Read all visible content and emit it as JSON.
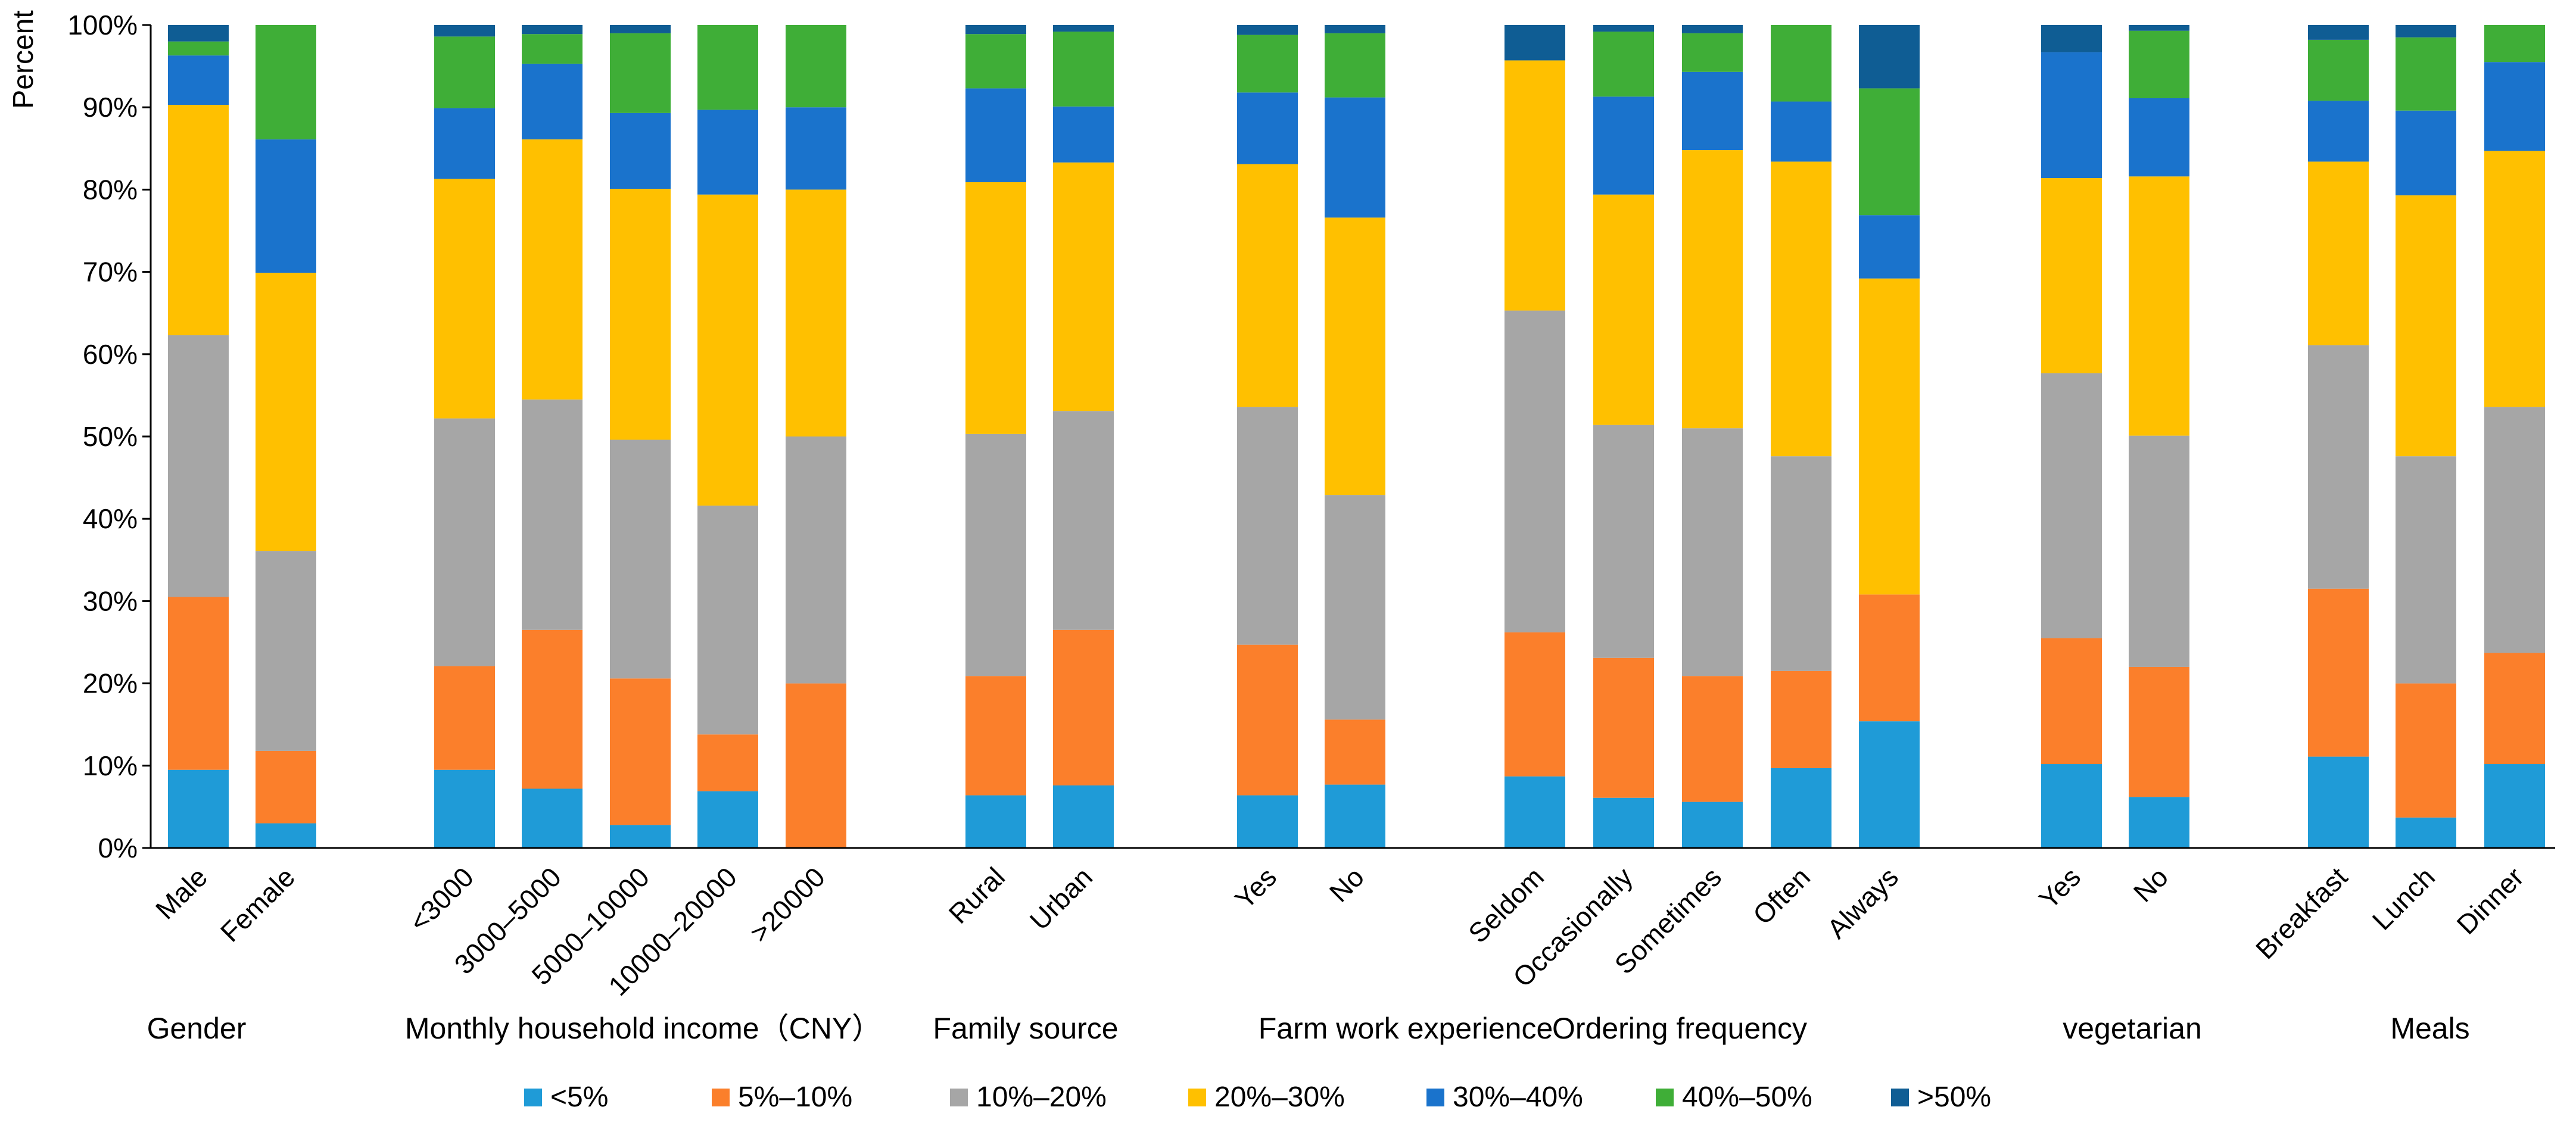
{
  "chart_data": {
    "type": "bar",
    "stacked": true,
    "ylabel": "Percent",
    "ylim": [
      0,
      100
    ],
    "yticks": [
      "0%",
      "10%",
      "20%",
      "30%",
      "40%",
      "50%",
      "60%",
      "70%",
      "80%",
      "90%",
      "100%"
    ],
    "legend_position": "bottom",
    "series": [
      {
        "name": "<5%",
        "color": "#1f9bd7"
      },
      {
        "name": "5%–10%",
        "color": "#fb7f2b"
      },
      {
        "name": "10%–20%",
        "color": "#a6a6a6"
      },
      {
        "name": "20%–30%",
        "color": "#ffc000"
      },
      {
        "name": "30%–40%",
        "color": "#1a73cc"
      },
      {
        "name": "40%–50%",
        "color": "#3fae37"
      },
      {
        "name": ">50%",
        "color": "#0f5d94"
      }
    ],
    "groups": [
      {
        "name": "Gender",
        "bars": [
          {
            "label": "Male",
            "values": [
              9.5,
              21,
              31.8,
              28,
              6,
              1.7,
              2
            ]
          },
          {
            "label": "Female",
            "values": [
              3,
              8.8,
              24.3,
              33.8,
              16.2,
              13.9,
              0
            ]
          }
        ]
      },
      {
        "name": "Monthly household income（CNY）",
        "bars": [
          {
            "label": "<3000",
            "values": [
              9.5,
              12.6,
              30.1,
              29.1,
              8.6,
              8.7,
              1.4
            ]
          },
          {
            "label": "3000–5000",
            "values": [
              7.2,
              19.3,
              28,
              31.6,
              9.2,
              3.6,
              1.1
            ]
          },
          {
            "label": "5000–10000",
            "values": [
              2.8,
              17.8,
              29,
              30.5,
              9.2,
              9.7,
              1
            ]
          },
          {
            "label": "10000–20000",
            "values": [
              6.9,
              6.9,
              27.8,
              37.8,
              10.3,
              10.3,
              0
            ]
          },
          {
            "label": ">20000",
            "values": [
              0,
              20,
              30,
              30,
              10,
              10,
              0
            ]
          }
        ]
      },
      {
        "name": "Family source",
        "bars": [
          {
            "label": "Rural",
            "values": [
              6.4,
              14.5,
              29.4,
              30.6,
              11.4,
              6.6,
              1.1
            ]
          },
          {
            "label": "Urban",
            "values": [
              7.6,
              18.9,
              26.6,
              30.2,
              6.8,
              9.1,
              0.8
            ]
          }
        ]
      },
      {
        "name": "Farm work experience",
        "bars": [
          {
            "label": "Yes",
            "values": [
              6.4,
              18.3,
              28.9,
              29.5,
              8.7,
              7,
              1.2
            ]
          },
          {
            "label": "No",
            "values": [
              7.7,
              7.9,
              27.3,
              33.7,
              14.6,
              7.8,
              1
            ]
          }
        ]
      },
      {
        "name": "Ordering frequency",
        "bars": [
          {
            "label": "Seldom",
            "values": [
              8.7,
              17.5,
              39.1,
              30.4,
              0,
              0,
              4.3
            ]
          },
          {
            "label": "Occasionally",
            "values": [
              6.1,
              17,
              28.3,
              28,
              11.9,
              7.9,
              0.8
            ]
          },
          {
            "label": "Sometimes",
            "values": [
              5.6,
              15.3,
              30.1,
              33.8,
              9.5,
              4.7,
              1
            ]
          },
          {
            "label": "Often",
            "values": [
              9.7,
              11.8,
              26.1,
              35.8,
              7.3,
              9.3,
              0
            ]
          },
          {
            "label": "Always",
            "values": [
              15.4,
              15.4,
              0,
              38.4,
              7.7,
              15.4,
              7.7
            ]
          }
        ]
      },
      {
        "name": "vegetarian",
        "bars": [
          {
            "label": "Yes",
            "values": [
              10.2,
              15.3,
              32.2,
              23.7,
              15.3,
              0,
              3.3
            ]
          },
          {
            "label": "No",
            "values": [
              6.2,
              15.8,
              28.1,
              31.5,
              9.5,
              8.2,
              0.7
            ]
          }
        ]
      },
      {
        "name": "Meals",
        "bars": [
          {
            "label": "Breakfast",
            "values": [
              11.1,
              20.4,
              29.6,
              22.3,
              7.4,
              7.4,
              1.8
            ]
          },
          {
            "label": "Lunch",
            "values": [
              3.7,
              16.3,
              27.6,
              31.7,
              10.3,
              8.9,
              1.5
            ]
          },
          {
            "label": "Dinner",
            "values": [
              10.2,
              13.5,
              29.9,
              31.1,
              10.8,
              4.5,
              0
            ]
          }
        ]
      }
    ]
  }
}
